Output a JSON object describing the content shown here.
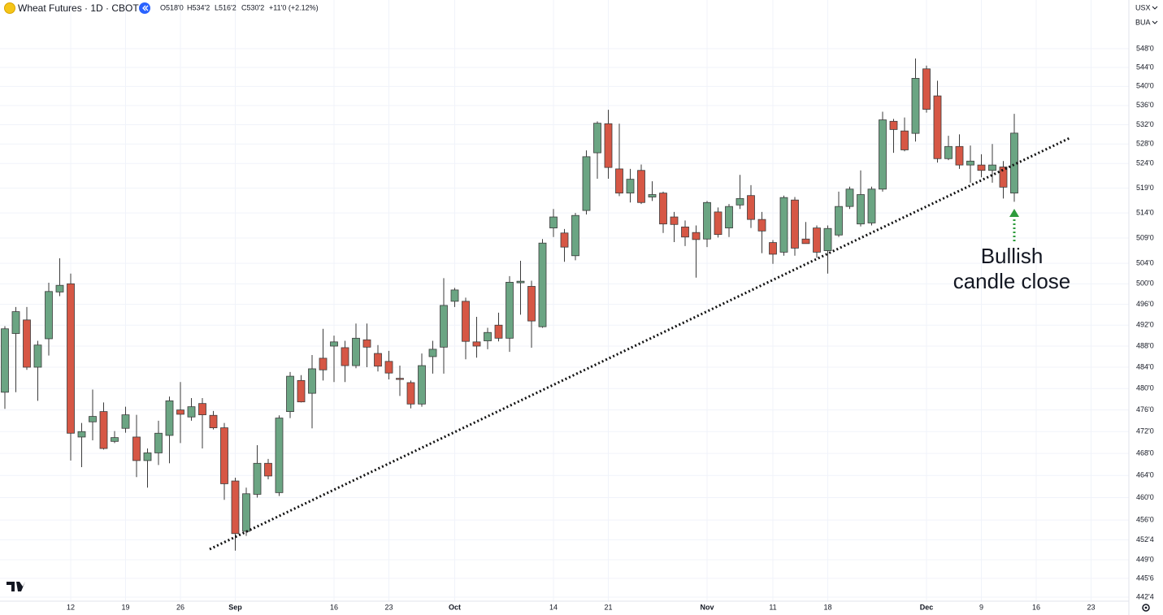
{
  "chart_data": {
    "type": "candlestick",
    "title": "Wheat Futures · 1D · CBOT",
    "ohlc_labels": [
      "O518'0",
      "H534'2",
      "L516'2",
      "C530'2",
      "+11'0 (+2.12%)"
    ],
    "currency": "USX",
    "unit": "BUA",
    "log": true,
    "grid": true,
    "up_color": "#6ba583",
    "down_color": "#d65745",
    "annotation": [
      "Bullish",
      "candle close"
    ],
    "annotation_color": "#2e9b3c",
    "ylim": [
      441.8,
      558.5
    ],
    "yticks": [
      {
        "value": 548,
        "label": "548'0"
      },
      {
        "value": 544,
        "label": "544'0"
      },
      {
        "value": 540,
        "label": "540'0"
      },
      {
        "value": 536,
        "label": "536'0"
      },
      {
        "value": 532,
        "label": "532'0"
      },
      {
        "value": 528,
        "label": "528'0"
      },
      {
        "value": 524,
        "label": "524'0"
      },
      {
        "value": 519,
        "label": "519'0"
      },
      {
        "value": 514,
        "label": "514'0"
      },
      {
        "value": 509,
        "label": "509'0"
      },
      {
        "value": 504,
        "label": "504'0"
      },
      {
        "value": 500,
        "label": "500'0"
      },
      {
        "value": 496,
        "label": "496'0"
      },
      {
        "value": 492,
        "label": "492'0"
      },
      {
        "value": 488,
        "label": "488'0"
      },
      {
        "value": 484,
        "label": "484'0"
      },
      {
        "value": 480,
        "label": "480'0"
      },
      {
        "value": 476,
        "label": "476'0"
      },
      {
        "value": 472,
        "label": "472'0"
      },
      {
        "value": 468,
        "label": "468'0"
      },
      {
        "value": 464,
        "label": "464'0"
      },
      {
        "value": 460,
        "label": "460'0"
      },
      {
        "value": 456,
        "label": "456'0"
      },
      {
        "value": 452.5,
        "label": "452'4"
      },
      {
        "value": 449,
        "label": "449'0"
      },
      {
        "value": 445.75,
        "label": "445'6"
      },
      {
        "value": 442.5,
        "label": "442'4"
      }
    ],
    "categories": [
      null,
      null,
      null,
      null,
      null,
      null,
      "12",
      null,
      null,
      null,
      null,
      "19",
      null,
      null,
      null,
      null,
      "26",
      null,
      null,
      null,
      null,
      "Sep",
      null,
      null,
      null,
      null,
      null,
      null,
      null,
      null,
      "16",
      null,
      null,
      null,
      null,
      "23",
      null,
      null,
      null,
      null,
      null,
      "Oct",
      null,
      null,
      null,
      null,
      null,
      null,
      null,
      null,
      "14",
      null,
      null,
      null,
      null,
      "21",
      null,
      null,
      null,
      null,
      null,
      null,
      null,
      null,
      "Nov",
      null,
      null,
      null,
      null,
      null,
      "11",
      null,
      null,
      null,
      null,
      "18",
      null,
      null,
      null,
      null,
      null,
      null,
      null,
      null,
      "Dec",
      null,
      null,
      null,
      null,
      "9",
      null,
      null,
      null,
      null,
      "16",
      null,
      null,
      null,
      null,
      "23"
    ],
    "open": [
      479.3,
      490.4,
      493,
      484,
      489.4,
      498.4,
      500,
      471,
      473.8,
      475.7,
      470.2,
      472.6,
      471,
      466.7,
      468.1,
      471.3,
      476,
      474.7,
      477.2,
      475,
      472.7,
      463,
      454,
      460.6,
      466.2,
      460.9,
      475.7,
      481.5,
      479.1,
      485.7,
      488,
      487.7,
      484.3,
      489.2,
      486.6,
      485.1,
      481.9,
      481.1,
      477.1,
      486,
      487.8,
      496.6,
      496.6,
      488.8,
      489,
      492,
      489.5,
      500.2,
      499.5,
      491.7,
      511,
      510,
      505.5,
      514.5,
      526.2,
      532.2,
      522.9,
      518,
      522.6,
      517.2,
      518,
      513.2,
      511.2,
      510.1,
      508.8,
      514.2,
      511,
      515.6,
      517.5,
      512.7,
      508.1,
      506.2,
      516.6,
      508.8,
      511,
      506.5,
      509.6,
      515.3,
      511.8,
      512,
      518.8,
      532.7,
      530.7,
      530.2,
      543.7,
      538,
      525,
      527.5,
      523.7,
      523.7,
      522.6,
      523.3,
      518,
      null,
      null,
      null,
      null,
      null,
      null,
      null
    ],
    "high": [
      491.8,
      495.5,
      495.5,
      489,
      500.2,
      505,
      502,
      473.6,
      479.8,
      477.4,
      472.1,
      476.6,
      475.1,
      468.9,
      474,
      478.5,
      481.2,
      478.2,
      478.2,
      475.8,
      473.6,
      463.6,
      461.8,
      469.5,
      467,
      475,
      483.1,
      482.5,
      486.3,
      491.3,
      490,
      489,
      492.3,
      492.3,
      488.2,
      487.1,
      484.3,
      481.5,
      486.6,
      489,
      501.1,
      499.2,
      497.3,
      493.6,
      491.5,
      494.4,
      501.5,
      504.5,
      500.6,
      508.8,
      514.8,
      510.8,
      514,
      526.7,
      532.7,
      535.1,
      532.2,
      522.9,
      523.8,
      520.4,
      518.3,
      514.2,
      512.5,
      511.5,
      516.4,
      515.1,
      515.8,
      521.7,
      519.6,
      514.2,
      508.6,
      517.5,
      517.2,
      512.2,
      511.5,
      511.5,
      518.3,
      519.3,
      522.6,
      519.3,
      534.7,
      533.2,
      533.5,
      545.9,
      544.4,
      541.2,
      529.7,
      530,
      527.7,
      525.9,
      528,
      524.5,
      534.25,
      null,
      null,
      null,
      null,
      null,
      null,
      null
    ],
    "low": [
      476.2,
      479.3,
      483.5,
      477.7,
      486.2,
      497.6,
      466.7,
      465.5,
      470.4,
      468.7,
      469.9,
      471.8,
      463.7,
      461.8,
      465.9,
      466.2,
      469.9,
      474,
      468.9,
      472.4,
      459.6,
      450.6,
      453.2,
      460,
      463.3,
      460.3,
      474.5,
      477.4,
      472.6,
      481.5,
      481.2,
      481.2,
      483.8,
      484,
      483.2,
      481.7,
      478.6,
      476.3,
      476.6,
      482.8,
      482.8,
      495.5,
      485.5,
      485.8,
      487.4,
      488.9,
      486.9,
      494,
      487.7,
      491.5,
      509.2,
      504.3,
      504.6,
      513.7,
      520.9,
      520.9,
      517.4,
      516.1,
      515.8,
      516.4,
      510,
      508.2,
      507.4,
      501.2,
      507.2,
      509.1,
      509.2,
      514.8,
      511,
      506,
      503.9,
      505.5,
      505.5,
      507.9,
      505.1,
      502,
      509.2,
      514.8,
      511.3,
      511.5,
      518.3,
      526.2,
      526.5,
      528.5,
      534.5,
      524.2,
      524.7,
      522.9,
      520.1,
      521.2,
      520.1,
      516.9,
      516.25,
      null,
      null,
      null,
      null,
      null,
      null,
      null
    ],
    "close": [
      491.3,
      494.6,
      484,
      488.2,
      498.5,
      499.7,
      471.7,
      472,
      474.8,
      468.9,
      470.9,
      475.1,
      466.7,
      468.1,
      471.7,
      477.7,
      475.2,
      476.6,
      475.1,
      472.7,
      462.5,
      453.6,
      460.7,
      466.2,
      463.9,
      474.5,
      482.3,
      477.5,
      483.7,
      483.5,
      488.8,
      484.3,
      489.5,
      487.8,
      484.2,
      482.9,
      481.7,
      477.1,
      484.3,
      487.4,
      495.8,
      498.8,
      488.9,
      488,
      490.6,
      489.5,
      500.3,
      500.5,
      492.8,
      508,
      513.2,
      507.2,
      513.5,
      525.4,
      532.3,
      523.2,
      518,
      520.8,
      516.1,
      517.7,
      511.8,
      511.7,
      509.2,
      508.7,
      516.1,
      509.7,
      515.3,
      516.9,
      512.7,
      510.4,
      505.8,
      517.1,
      507,
      507.9,
      506.2,
      510.9,
      515.3,
      518.8,
      517.7,
      518.8,
      533,
      531,
      526.8,
      541.7,
      535.2,
      525,
      527.5,
      523.7,
      524.5,
      522.6,
      523.7,
      519.2,
      530.25,
      null,
      null,
      null,
      null,
      null,
      null,
      null
    ]
  }
}
